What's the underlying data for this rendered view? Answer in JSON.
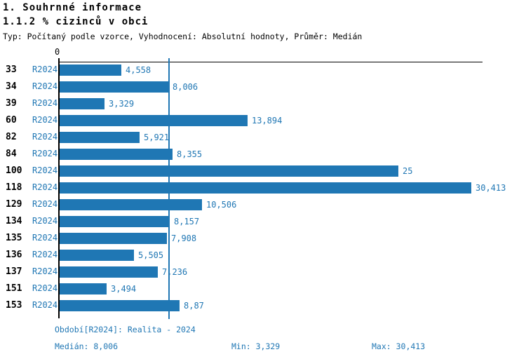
{
  "header": {
    "title": "1. Souhrnné informace",
    "subtitle": "1.1.2 % cizinců v obci",
    "meta": "Typ: Počítaný podle vzorce, Vyhodnocení: Absolutní hodnoty, Průměr: Medián"
  },
  "chart_data": {
    "type": "bar",
    "orientation": "horizontal",
    "title": "1.1.2 % cizinců v obci",
    "origin_tick_label": "0",
    "categories": [
      "33",
      "34",
      "39",
      "60",
      "82",
      "84",
      "100",
      "118",
      "129",
      "134",
      "135",
      "136",
      "137",
      "151",
      "153"
    ],
    "series": [
      {
        "name": "R2024",
        "values": [
          4.558,
          8.006,
          3.329,
          13.894,
          5.921,
          8.355,
          25,
          30.413,
          10.506,
          8.157,
          7.908,
          5.505,
          7.236,
          3.494,
          8.87
        ],
        "value_labels": [
          "4,558",
          "8,006",
          "3,329",
          "13,894",
          "5,921",
          "8,355",
          "25",
          "30,413",
          "10,506",
          "8,157",
          "7,908",
          "5,505",
          "7,236",
          "3,494",
          "8,87"
        ]
      }
    ],
    "period_label": "R2024",
    "median_value": 8.006,
    "xlim": [
      0,
      31
    ],
    "grid": "median-line-only",
    "bar_color": "#1f77b4",
    "median_line_color": "#2077b4",
    "label_color": "#2077b4",
    "axis_color": "#000000"
  },
  "footer": {
    "period_info": "Období[R2024]: Realita - 2024",
    "median": "Medián: 8,006",
    "min": "Min: 3,329",
    "max": "Max: 30,413"
  }
}
